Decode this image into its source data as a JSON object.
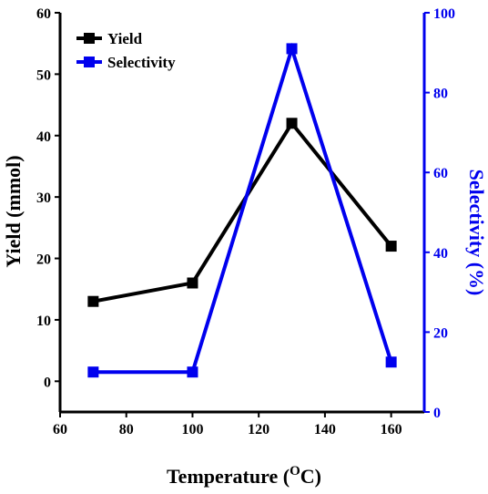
{
  "chart_data": {
    "type": "line",
    "title": "",
    "xlabel_main": "Temperature (",
    "xlabel_sup": "O",
    "xlabel_end": "C)",
    "ylabel_left": "Yield (mmol)",
    "ylabel_right": "Selectivity (%)",
    "xlim": [
      60,
      170
    ],
    "ylim_left": [
      -5,
      60
    ],
    "ylim_right": [
      0,
      100
    ],
    "x_ticks": [
      60,
      80,
      100,
      120,
      140,
      160
    ],
    "y_left_ticks": [
      0,
      10,
      20,
      30,
      40,
      50,
      60
    ],
    "y_right_ticks": [
      0,
      20,
      40,
      60,
      80,
      100
    ],
    "legend_position": "top-left",
    "colors": {
      "yield": "#000000",
      "selectivity": "#0000ee"
    },
    "series": [
      {
        "name": "Yield",
        "axis": "left",
        "x": [
          70,
          100,
          130,
          160
        ],
        "values": [
          13,
          16,
          42,
          22
        ]
      },
      {
        "name": "Selectivity",
        "axis": "right",
        "x": [
          70,
          100,
          130,
          160
        ],
        "values": [
          10,
          10,
          91,
          12.5
        ]
      }
    ]
  }
}
